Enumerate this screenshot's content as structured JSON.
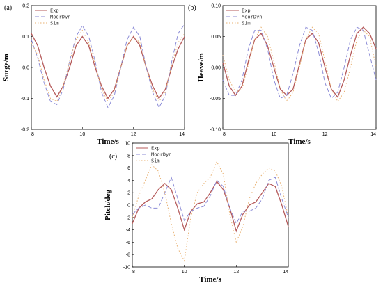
{
  "colors": {
    "Exp": "#b55a5a",
    "MoorDyn": "#8b8bd6",
    "Sim": "#e8b070"
  },
  "chart_data": [
    {
      "type": "line",
      "panel_label": "(a)",
      "xlabel": "Time/s",
      "ylabel": "Surge/m",
      "xlim": [
        8,
        14
      ],
      "ylim": [
        -0.2,
        0.2
      ],
      "xticks": [
        "8",
        "10",
        "12",
        "14"
      ],
      "yticks": [
        "-0.2",
        "-0.1",
        "0.0",
        "0.1",
        "0.2"
      ],
      "legend_position": "top-left",
      "series": [
        {
          "name": "Exp",
          "style": "solid",
          "x": [
            8.0,
            8.25,
            8.5,
            8.75,
            9.0,
            9.25,
            9.5,
            9.75,
            10.0,
            10.25,
            10.5,
            10.75,
            11.0,
            11.25,
            11.5,
            11.75,
            12.0,
            12.25,
            12.5,
            12.75,
            13.0,
            13.25,
            13.5,
            13.75,
            14.0
          ],
          "y": [
            0.11,
            0.07,
            0.0,
            -0.06,
            -0.095,
            -0.06,
            0.0,
            0.07,
            0.1,
            0.07,
            0.0,
            -0.06,
            -0.1,
            -0.07,
            0.0,
            0.07,
            0.1,
            0.07,
            0.0,
            -0.06,
            -0.1,
            -0.07,
            0.0,
            0.06,
            0.1
          ]
        },
        {
          "name": "MoorDyn",
          "style": "dashed",
          "x": [
            8.0,
            8.25,
            8.5,
            8.75,
            9.0,
            9.25,
            9.5,
            9.75,
            10.0,
            10.25,
            10.5,
            10.75,
            11.0,
            11.25,
            11.5,
            11.75,
            12.0,
            12.25,
            12.5,
            12.75,
            13.0,
            13.25,
            13.5,
            13.75,
            14.0
          ],
          "y": [
            0.09,
            0.03,
            -0.05,
            -0.11,
            -0.12,
            -0.07,
            0.02,
            0.1,
            0.135,
            0.1,
            0.02,
            -0.08,
            -0.13,
            -0.09,
            0.0,
            0.09,
            0.13,
            0.1,
            0.0,
            -0.08,
            -0.13,
            -0.09,
            0.02,
            0.11,
            0.14
          ]
        },
        {
          "name": "Sim",
          "style": "dotted",
          "x": [
            8.0,
            8.25,
            8.5,
            8.75,
            9.0,
            9.25,
            9.5,
            9.75,
            10.0,
            10.25,
            10.5,
            10.75,
            11.0,
            11.25,
            11.5,
            11.75,
            12.0,
            12.25,
            12.5,
            12.75,
            13.0,
            13.25,
            13.5,
            13.75,
            14.0
          ],
          "y": [
            0.08,
            0.04,
            -0.04,
            -0.1,
            -0.11,
            -0.06,
            0.02,
            0.09,
            0.12,
            0.08,
            0.01,
            -0.07,
            -0.11,
            -0.08,
            0.0,
            0.07,
            0.1,
            0.08,
            0.0,
            -0.07,
            -0.11,
            -0.08,
            0.01,
            0.08,
            0.11
          ]
        }
      ]
    },
    {
      "type": "line",
      "panel_label": "(b)",
      "xlabel": "Time/s",
      "ylabel": "Heave/m",
      "xlim": [
        8,
        14
      ],
      "ylim": [
        -0.1,
        0.1
      ],
      "xticks": [
        "8",
        "10",
        "12",
        "14"
      ],
      "yticks": [
        "-0.10",
        "-0.05",
        "0.00",
        "0.05",
        "0.10"
      ],
      "legend_position": "top-left",
      "series": [
        {
          "name": "Exp",
          "style": "solid",
          "x": [
            8.0,
            8.25,
            8.5,
            8.75,
            9.0,
            9.25,
            9.5,
            9.75,
            10.0,
            10.25,
            10.5,
            10.75,
            11.0,
            11.25,
            11.5,
            11.75,
            12.0,
            12.25,
            12.5,
            12.75,
            13.0,
            13.25,
            13.5,
            13.75,
            14.0
          ],
          "y": [
            0.008,
            -0.03,
            -0.045,
            -0.03,
            0.01,
            0.045,
            0.055,
            0.035,
            0.0,
            -0.035,
            -0.045,
            -0.035,
            0.005,
            0.045,
            0.055,
            0.04,
            0.0,
            -0.035,
            -0.048,
            -0.02,
            0.02,
            0.055,
            0.065,
            0.055,
            0.03
          ]
        },
        {
          "name": "MoorDyn",
          "style": "dashed",
          "x": [
            8.0,
            8.25,
            8.5,
            8.75,
            9.0,
            9.25,
            9.5,
            9.75,
            10.0,
            10.25,
            10.5,
            10.75,
            11.0,
            11.25,
            11.5,
            11.75,
            12.0,
            12.25,
            12.5,
            12.75,
            13.0,
            13.25,
            13.5,
            13.75,
            14.0
          ],
          "y": [
            -0.02,
            -0.045,
            -0.045,
            -0.02,
            0.03,
            0.06,
            0.06,
            0.03,
            -0.02,
            -0.05,
            -0.045,
            -0.01,
            0.035,
            0.065,
            0.06,
            0.025,
            -0.025,
            -0.05,
            -0.04,
            0.0,
            0.045,
            0.065,
            0.06,
            0.02,
            -0.02
          ]
        },
        {
          "name": "Sim",
          "style": "dotted",
          "x": [
            8.0,
            8.25,
            8.5,
            8.75,
            9.0,
            9.25,
            9.5,
            9.75,
            10.0,
            10.25,
            10.5,
            10.75,
            11.0,
            11.25,
            11.5,
            11.75,
            12.0,
            12.25,
            12.5,
            12.75,
            13.0,
            13.25,
            13.5,
            13.75,
            14.0
          ],
          "y": [
            0.02,
            -0.02,
            -0.04,
            -0.035,
            0.005,
            0.045,
            0.065,
            0.05,
            0.01,
            -0.035,
            -0.055,
            -0.04,
            0.0,
            0.045,
            0.065,
            0.055,
            0.01,
            -0.035,
            -0.055,
            -0.04,
            0.0,
            0.045,
            0.06,
            0.05,
            0.0
          ]
        }
      ]
    },
    {
      "type": "line",
      "panel_label": "(c)",
      "xlabel": "Time/s",
      "ylabel": "Pitch/deg",
      "xlim": [
        8,
        14
      ],
      "ylim": [
        -10,
        10
      ],
      "xticks": [
        "8",
        "10",
        "12",
        "14"
      ],
      "yticks": [
        "-10",
        "-8",
        "-6",
        "-4",
        "-2",
        "0",
        "2",
        "4",
        "6",
        "8",
        "10"
      ],
      "legend_position": "top-left",
      "series": [
        {
          "name": "Exp",
          "style": "solid",
          "x": [
            8.0,
            8.25,
            8.5,
            8.75,
            9.0,
            9.25,
            9.5,
            9.75,
            10.0,
            10.25,
            10.5,
            10.75,
            11.0,
            11.25,
            11.5,
            11.75,
            12.0,
            12.25,
            12.5,
            12.75,
            13.0,
            13.25,
            13.5,
            13.75,
            14.0
          ],
          "y": [
            -3.0,
            -0.5,
            0.5,
            1.0,
            2.5,
            3.5,
            2.5,
            -0.5,
            -4.0,
            -1.0,
            0.2,
            0.5,
            2.0,
            3.8,
            2.5,
            -0.5,
            -4.2,
            -1.5,
            0.0,
            0.5,
            2.0,
            3.5,
            3.0,
            0.0,
            -3.5
          ]
        },
        {
          "name": "MoorDyn",
          "style": "dashed",
          "x": [
            8.0,
            8.25,
            8.5,
            8.75,
            9.0,
            9.25,
            9.5,
            9.75,
            10.0,
            10.25,
            10.5,
            10.75,
            11.0,
            11.25,
            11.5,
            11.75,
            12.0,
            12.25,
            12.5,
            12.75,
            13.0,
            13.25,
            13.5,
            13.75,
            14.0
          ],
          "y": [
            -1.5,
            -0.5,
            0.0,
            -0.5,
            -0.5,
            2.0,
            4.5,
            1.0,
            -2.5,
            -1.0,
            -0.5,
            -0.2,
            1.5,
            4.0,
            3.0,
            -0.5,
            -3.0,
            -1.0,
            -1.0,
            -0.5,
            1.0,
            4.0,
            4.5,
            1.0,
            -2.0
          ]
        },
        {
          "name": "Sim",
          "style": "dotted",
          "x": [
            8.0,
            8.25,
            8.5,
            8.75,
            9.0,
            9.25,
            9.5,
            9.75,
            10.0,
            10.25,
            10.5,
            10.75,
            11.0,
            11.25,
            11.5,
            11.75,
            12.0,
            12.25,
            12.5,
            12.75,
            13.0,
            13.25,
            13.5,
            13.75,
            14.0
          ],
          "y": [
            -2.0,
            1.5,
            4.0,
            6.5,
            5.5,
            2.0,
            -3.0,
            -7.0,
            -9.0,
            -2.0,
            2.0,
            3.5,
            4.5,
            7.0,
            5.0,
            -1.5,
            -6.0,
            -3.5,
            1.0,
            3.5,
            5.0,
            6.0,
            5.5,
            3.0,
            -2.0
          ]
        }
      ]
    }
  ]
}
